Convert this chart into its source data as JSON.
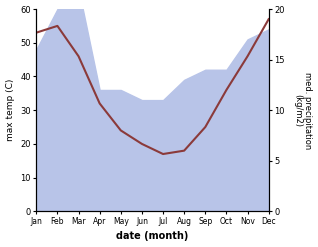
{
  "months": [
    "Jan",
    "Feb",
    "Mar",
    "Apr",
    "May",
    "Jun",
    "Jul",
    "Aug",
    "Sep",
    "Oct",
    "Nov",
    "Dec"
  ],
  "x": [
    0,
    1,
    2,
    3,
    4,
    5,
    6,
    7,
    8,
    9,
    10,
    11
  ],
  "temp": [
    53,
    55,
    46,
    32,
    24,
    20,
    17,
    18,
    25,
    36,
    46,
    57
  ],
  "precip": [
    16,
    20,
    22,
    12,
    12,
    11,
    11,
    13,
    14,
    14,
    17,
    18
  ],
  "temp_color": "#8B3A3A",
  "precip_fill_color": "#b8c4e8",
  "background": "#ffffff",
  "ylabel_left": "max temp (C)",
  "ylabel_right": "med. precipitation\n(kg/m2)",
  "xlabel": "date (month)",
  "ylim_left": [
    0,
    60
  ],
  "ylim_right": [
    0,
    20
  ],
  "yticks_left": [
    0,
    10,
    20,
    30,
    40,
    50,
    60
  ],
  "yticks_right": [
    0,
    5,
    10,
    15,
    20
  ]
}
